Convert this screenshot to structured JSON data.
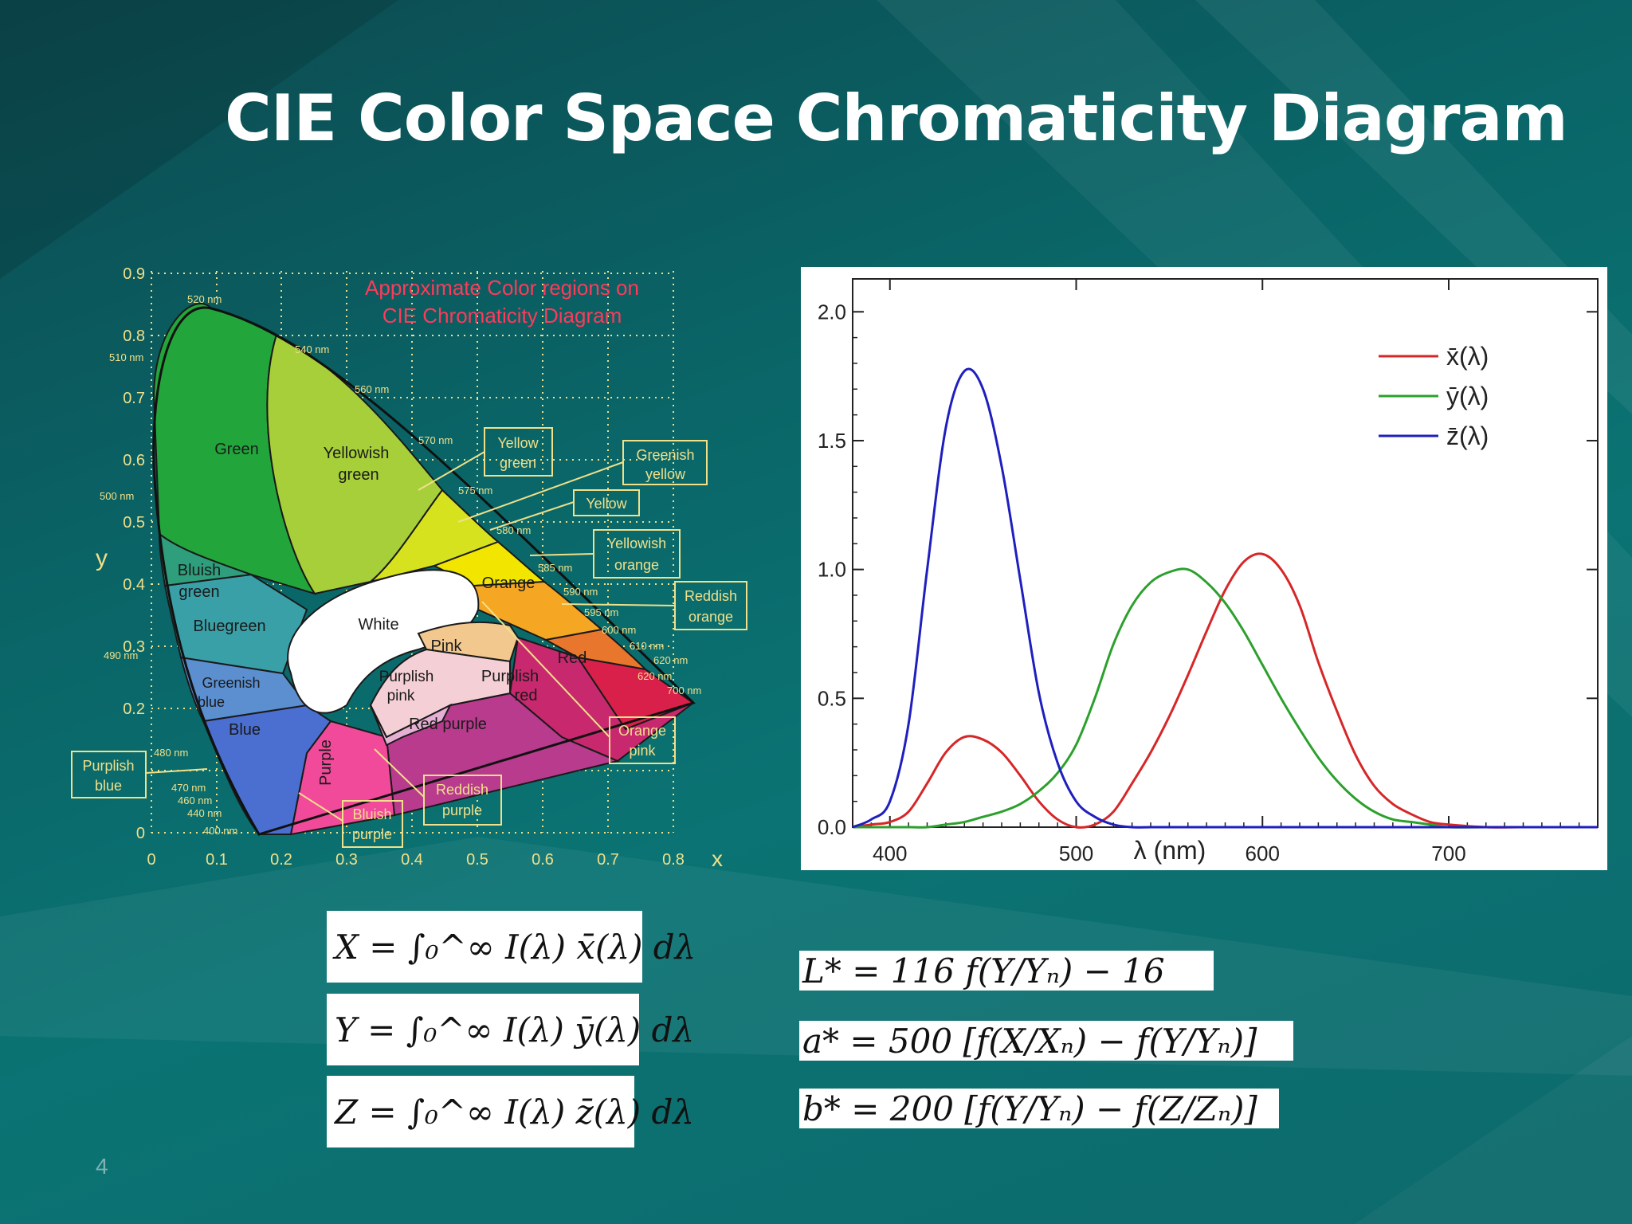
{
  "slide": {
    "title": "CIE Color Space Chromaticity Diagram",
    "slide_number": "4"
  },
  "cie_diagram": {
    "heading_line1": "Approximate Color regions on",
    "heading_line2": "CIE Chromaticity Diagram",
    "xlabel": "x",
    "ylabel": "y",
    "x_ticks": [
      "0",
      "0.1",
      "0.2",
      "0.3",
      "0.4",
      "0.5",
      "0.6",
      "0.7",
      "0.8"
    ],
    "y_ticks": [
      "0.9",
      "0.8",
      "0.7",
      "0.6",
      "0.5",
      "0.4",
      "0.3",
      "0.2",
      "0"
    ],
    "wavelength_labels": [
      "520 nm",
      "510 nm",
      "540 nm",
      "560 nm",
      "570 nm",
      "575 nm",
      "580 nm",
      "585 nm",
      "590 nm",
      "595 nm",
      "600 nm",
      "610 nm",
      "620 nm",
      "700 nm",
      "500 nm",
      "490 nm",
      "480 nm",
      "470 nm",
      "460 nm",
      "440 nm",
      "400 nm"
    ],
    "region_labels": {
      "green": "Green",
      "yellowish_green_1": "Yellowish",
      "yellowish_green_2": "green",
      "bluish_green_1": "Bluish",
      "bluish_green_2": "green",
      "bluegreen": "Bluegreen",
      "greenish_blue_1": "Greenish",
      "greenish_blue_2": "blue",
      "blue": "Blue",
      "purple": "Purple",
      "white": "White",
      "pink": "Pink",
      "orange": "Orange",
      "red": "Red",
      "purplish_pink_1": "Purplish",
      "purplish_pink_2": "pink",
      "purplish_red_1": "Purplish",
      "purplish_red_2": "red",
      "red_purple": "Red purple"
    },
    "callouts": {
      "yellow_green_1": "Yellow",
      "yellow_green_2": "green",
      "greenish_yellow_1": "Greenish",
      "greenish_yellow_2": "yellow",
      "yellow": "Yellow",
      "yellowish_orange_1": "Yellowish",
      "yellowish_orange_2": "orange",
      "reddish_orange_1": "Reddish",
      "reddish_orange_2": "orange",
      "orange_pink_1": "Orange",
      "orange_pink_2": "pink",
      "reddish_purple_1": "Reddish",
      "reddish_purple_2": "purple",
      "bluish_purple_1": "Bluish",
      "bluish_purple_2": "purple",
      "purplish_blue_1": "Purplish",
      "purplish_blue_2": "blue"
    },
    "colors": {
      "green": "#22a63c",
      "yellowish_green": "#a6cf3a",
      "yellow_green": "#d7e21e",
      "yellow": "#f2e600",
      "orange": "#f5a623",
      "reddish_orange": "#e8762c",
      "red": "#d8204a",
      "purplish_red": "#c8286e",
      "red_purple": "#b83b8e",
      "purple": "#f24a9a",
      "blue": "#4a6fd0",
      "greenish_blue": "#5b8fd0",
      "bluegreen": "#3aa0a8",
      "bluish_green": "#2f9e7c",
      "white": "#ffffff",
      "pink": "#f4cfd6",
      "orange_pink": "#f3c88e"
    }
  },
  "chart_data": {
    "type": "line",
    "title": "",
    "xlabel": "λ (nm)",
    "ylabel": "",
    "xlim": [
      380,
      780
    ],
    "ylim": [
      0,
      2.0
    ],
    "x_ticks": [
      "400",
      "500",
      "600",
      "700"
    ],
    "y_ticks": [
      "0.0",
      "0.5",
      "1.0",
      "1.5",
      "2.0"
    ],
    "legend_position": "top-right",
    "grid": false,
    "x": [
      380,
      390,
      400,
      410,
      420,
      430,
      440,
      450,
      460,
      470,
      480,
      490,
      500,
      510,
      520,
      530,
      540,
      550,
      560,
      570,
      580,
      590,
      600,
      610,
      620,
      630,
      640,
      650,
      660,
      670,
      680,
      690,
      700,
      720,
      740,
      760,
      780
    ],
    "series": [
      {
        "name": "x̄(λ)",
        "color": "#d62728",
        "values": [
          0.0,
          0.01,
          0.02,
          0.06,
          0.17,
          0.29,
          0.35,
          0.34,
          0.29,
          0.2,
          0.1,
          0.03,
          0.0,
          0.01,
          0.06,
          0.17,
          0.29,
          0.43,
          0.59,
          0.76,
          0.92,
          1.03,
          1.06,
          1.0,
          0.86,
          0.64,
          0.45,
          0.28,
          0.16,
          0.09,
          0.05,
          0.02,
          0.01,
          0.0,
          0.0,
          0.0,
          0.0
        ]
      },
      {
        "name": "ȳ(λ)",
        "color": "#2ca02c",
        "values": [
          0.0,
          0.0,
          0.0,
          0.0,
          0.0,
          0.01,
          0.02,
          0.04,
          0.06,
          0.09,
          0.14,
          0.21,
          0.32,
          0.5,
          0.71,
          0.86,
          0.95,
          0.99,
          1.0,
          0.95,
          0.87,
          0.76,
          0.63,
          0.5,
          0.38,
          0.27,
          0.18,
          0.11,
          0.06,
          0.03,
          0.02,
          0.01,
          0.0,
          0.0,
          0.0,
          0.0,
          0.0
        ]
      },
      {
        "name": "z̄(λ)",
        "color": "#1f1fbf",
        "values": [
          0.0,
          0.03,
          0.1,
          0.4,
          1.0,
          1.55,
          1.77,
          1.7,
          1.4,
          0.96,
          0.52,
          0.25,
          0.1,
          0.04,
          0.01,
          0.0,
          0.0,
          0.0,
          0.0,
          0.0,
          0.0,
          0.0,
          0.0,
          0.0,
          0.0,
          0.0,
          0.0,
          0.0,
          0.0,
          0.0,
          0.0,
          0.0,
          0.0,
          0.0,
          0.0,
          0.0,
          0.0
        ]
      }
    ]
  },
  "equations": {
    "X": "X = ∫₀^∞ I(λ) x̄(λ) dλ",
    "Y": "Y = ∫₀^∞ I(λ) ȳ(λ) dλ",
    "Z": "Z = ∫₀^∞ I(λ) z̄(λ) dλ",
    "L": "L* = 116 f(Y/Yₙ) − 16",
    "a": "a* = 500 [f(X/Xₙ) − f(Y/Yₙ)]",
    "b": "b* = 200 [f(Y/Yₙ) − f(Z/Zₙ)]"
  }
}
